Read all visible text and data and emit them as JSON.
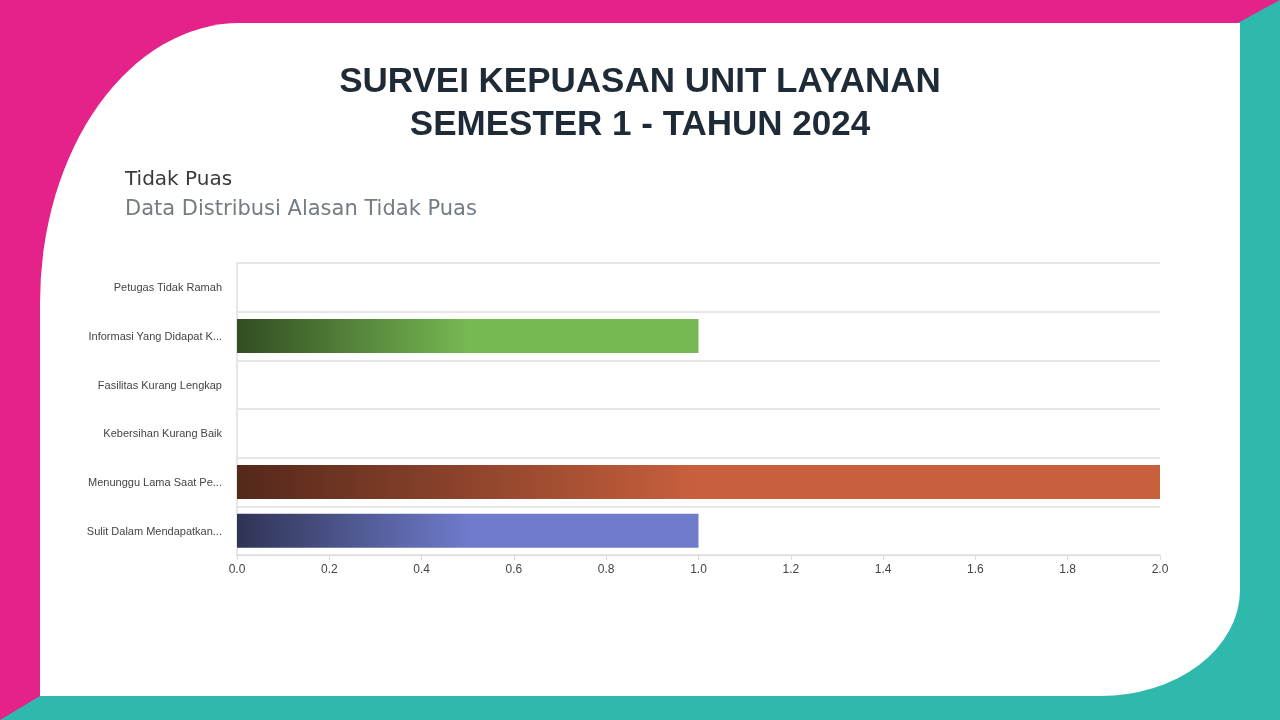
{
  "chart_data": {
    "type": "bar",
    "orientation": "horizontal",
    "title": "SURVEI KEPUASAN UNIT LAYANAN\nSEMESTER 1 - TAHUN 2024",
    "subtitle": "Tidak Puas",
    "annotations": [
      "Data Distribusi Alasan Tidak Puas"
    ],
    "categories": [
      "Petugas Tidak Ramah",
      "Informasi Yang Didapat K...",
      "Fasilitas Kurang Lengkap",
      "Kebersihan Kurang Baik",
      "Menunggu Lama Saat Pe...",
      "Sulit Dalam Mendapatkan..."
    ],
    "values": [
      0,
      1,
      0,
      0,
      2,
      1
    ],
    "colors": [
      null,
      "#76b852",
      null,
      null,
      "#c8603d",
      "#6f7bcb"
    ],
    "xlim": [
      0,
      2
    ],
    "xticks": [
      {
        "value": 0,
        "label": "0.0"
      },
      {
        "value": 0.2,
        "label": "0.2"
      },
      {
        "value": 0.4,
        "label": "0.4"
      },
      {
        "value": 0.6,
        "label": "0.6"
      },
      {
        "value": 0.8,
        "label": "0.8"
      },
      {
        "value": 1,
        "label": "1.0"
      },
      {
        "value": 1.2,
        "label": "1.2"
      },
      {
        "value": 1.4,
        "label": "1.4"
      },
      {
        "value": 1.6,
        "label": "1.6"
      },
      {
        "value": 1.8,
        "label": "1.8"
      },
      {
        "value": 2,
        "label": "2.0"
      }
    ],
    "grid": "y"
  }
}
